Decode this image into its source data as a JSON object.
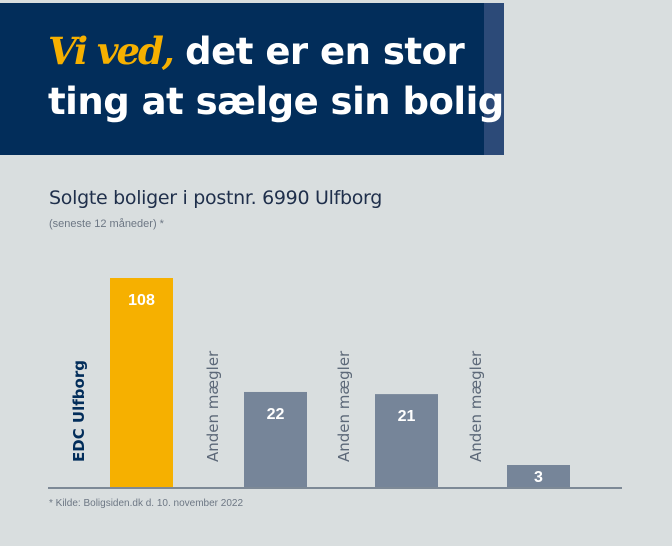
{
  "header": {
    "accent": "Vi ved,",
    "line1": " det er en stor",
    "line2": "ting at sælge sin bolig"
  },
  "colors": {
    "navy": "#022d5a",
    "edc": "#f6b000",
    "other": "#768599",
    "background": "#d9dedf"
  },
  "chart_data": {
    "type": "bar",
    "title": "Solgte boliger i postnr. 6990 Ulfborg",
    "subtitle": "(seneste 12 måneder) *",
    "categories": [
      "EDC Ulfborg",
      "Anden mægler",
      "Anden mægler",
      "Anden mægler"
    ],
    "values": [
      108,
      22,
      21,
      3
    ],
    "bar_colors": [
      "#f6b000",
      "#768599",
      "#768599",
      "#768599"
    ],
    "footnote": "* Kilde: Boligsiden.dk d. 10. november 2022"
  }
}
